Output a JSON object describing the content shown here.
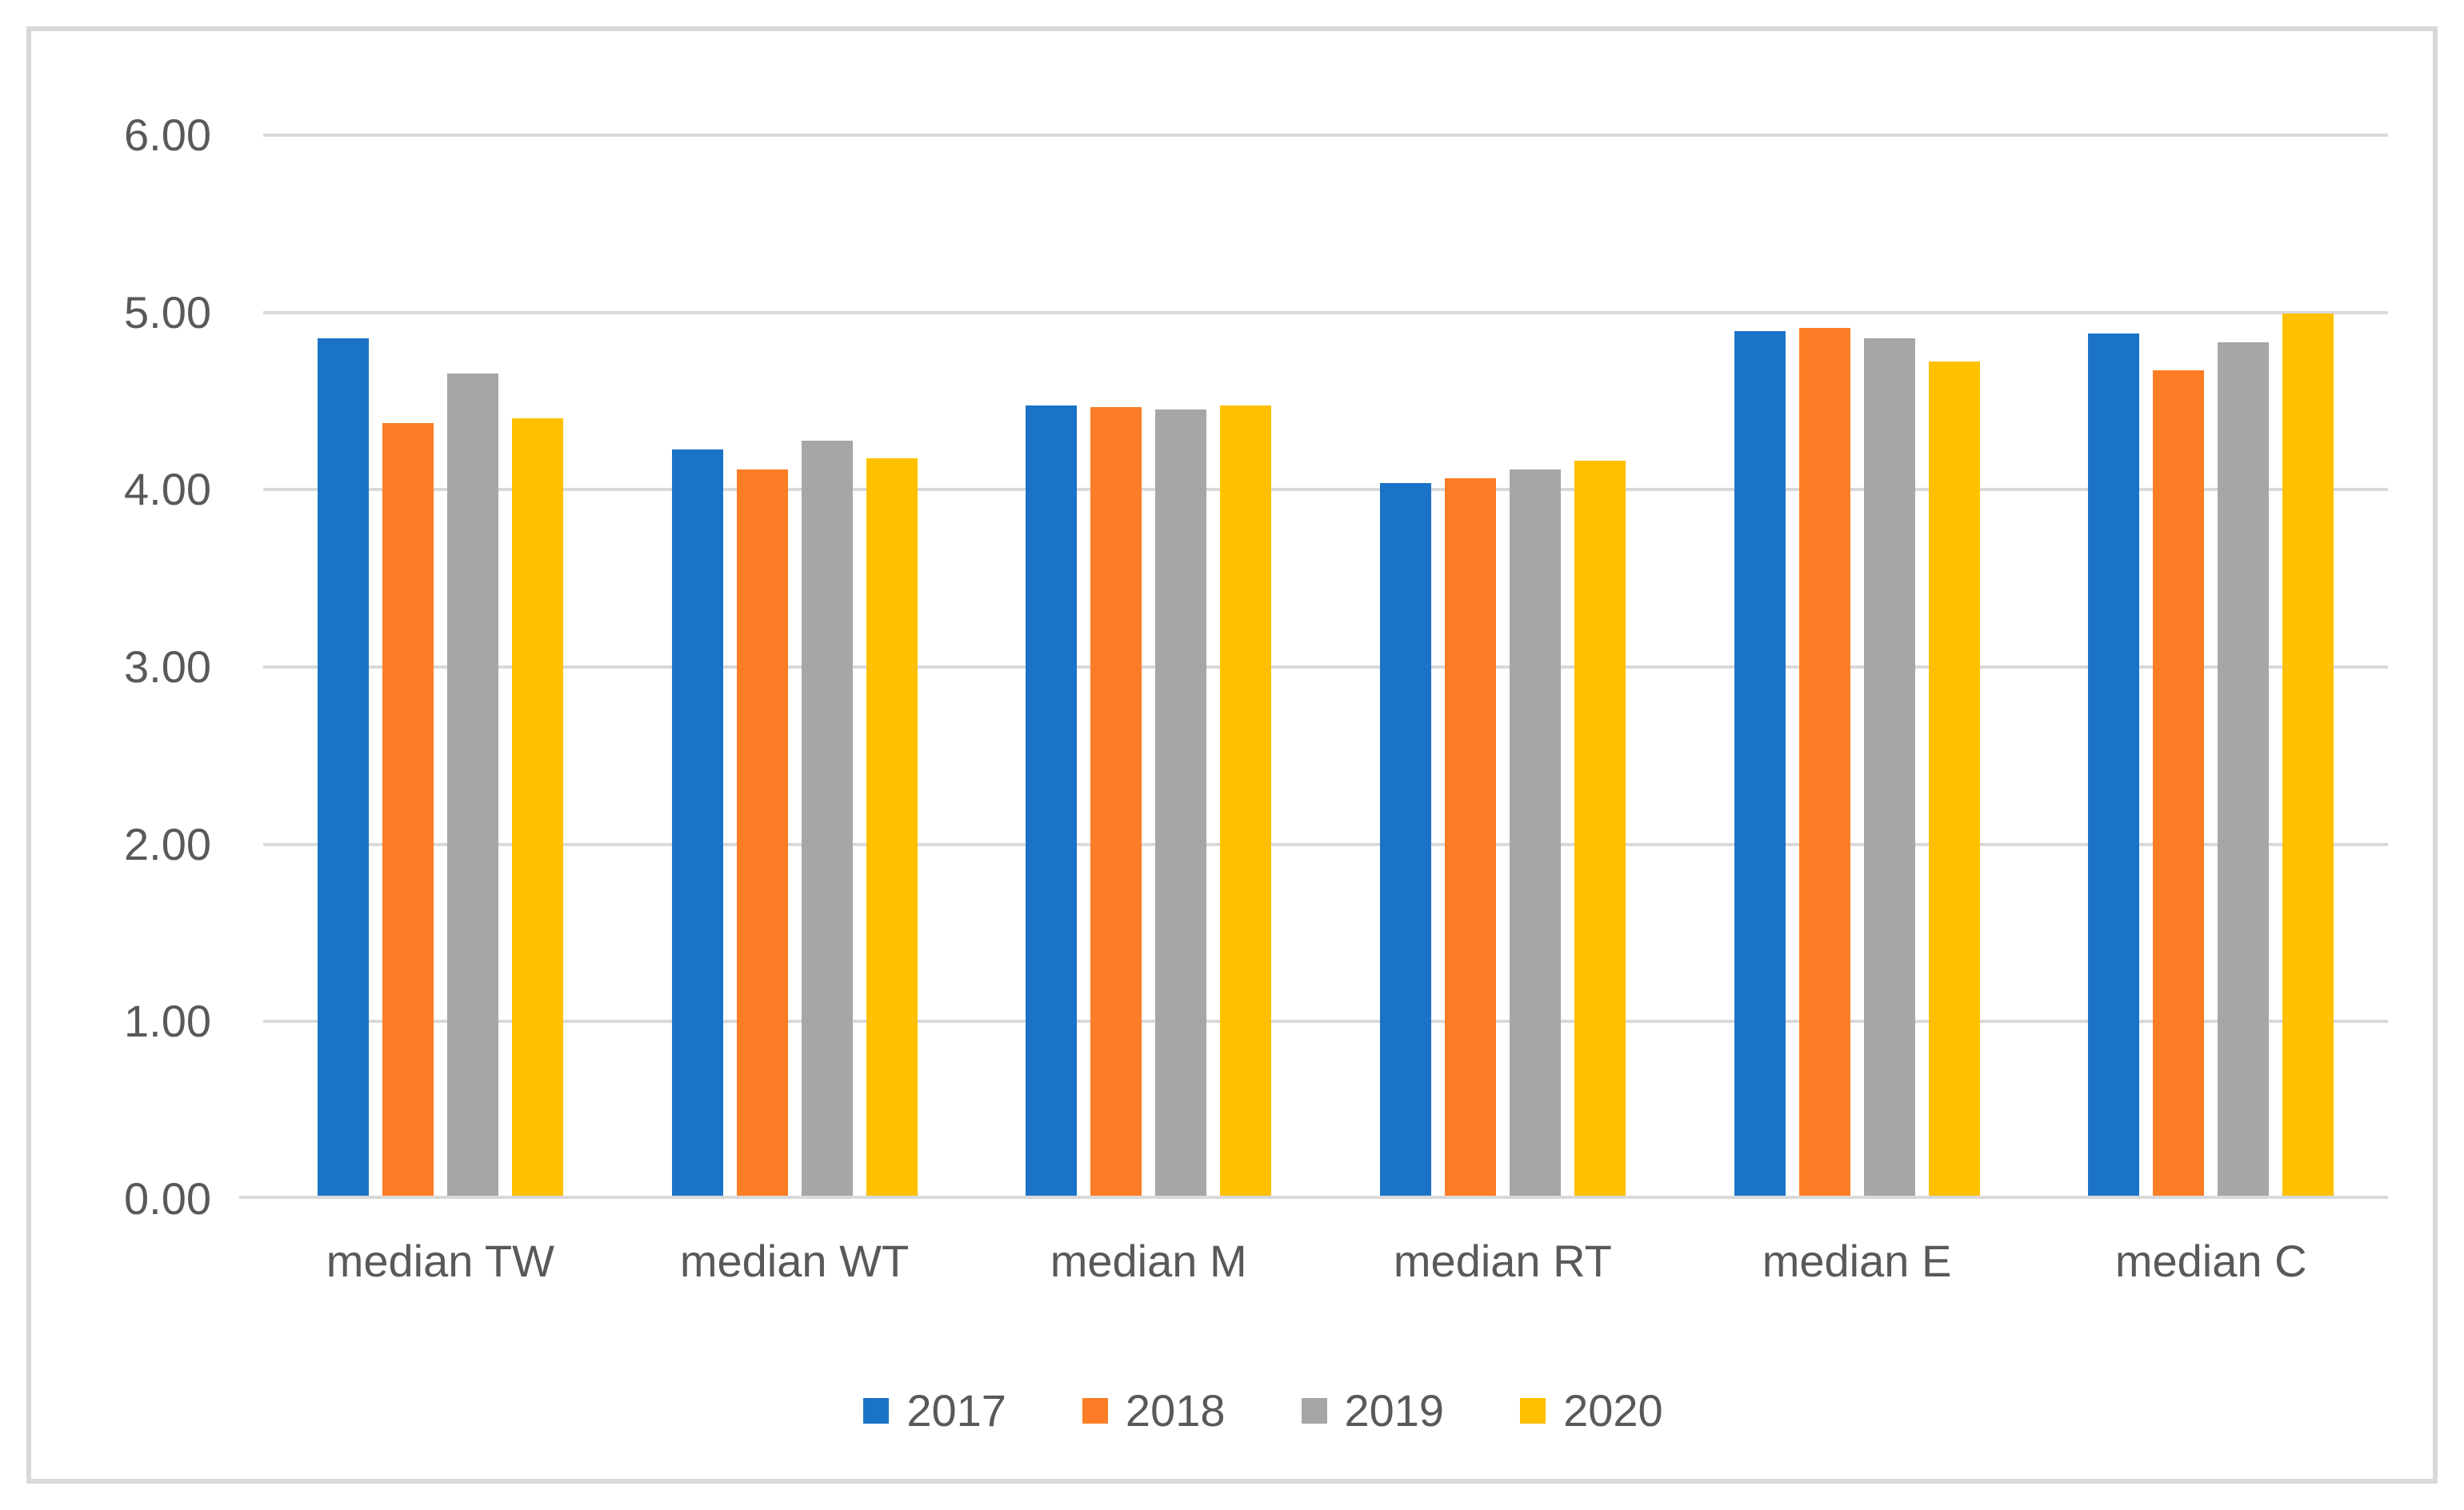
{
  "chart_data": {
    "type": "bar",
    "title": "",
    "categories": [
      "median TW",
      "median WT",
      "median M",
      "median RT",
      "median E",
      "median C"
    ],
    "series": [
      {
        "name": "2017",
        "color": "#1b73c8",
        "values": [
          4.85,
          4.22,
          4.47,
          4.03,
          4.89,
          4.88
        ]
      },
      {
        "name": "2018",
        "color": "#fc7d26",
        "values": [
          4.37,
          4.11,
          4.46,
          4.06,
          4.91,
          4.67
        ]
      },
      {
        "name": "2019",
        "color": "#a6a6a6",
        "values": [
          4.65,
          4.27,
          4.45,
          4.11,
          4.85,
          4.83
        ]
      },
      {
        "name": "2020",
        "color": "#ffc000",
        "values": [
          4.4,
          4.17,
          4.47,
          4.16,
          4.72,
          4.99
        ]
      }
    ],
    "ylim": [
      0,
      6
    ],
    "ytick_step": 1,
    "ytick_labels": [
      "0.00",
      "1.00",
      "2.00",
      "3.00",
      "4.00",
      "5.00",
      "6.00"
    ],
    "grid": "horizontal",
    "legend_position": "bottom"
  },
  "colors": {
    "gridline": "#d9d9d9",
    "frame_border": "#d9d9d9",
    "axis_text": "#595959",
    "background": "#ffffff"
  }
}
